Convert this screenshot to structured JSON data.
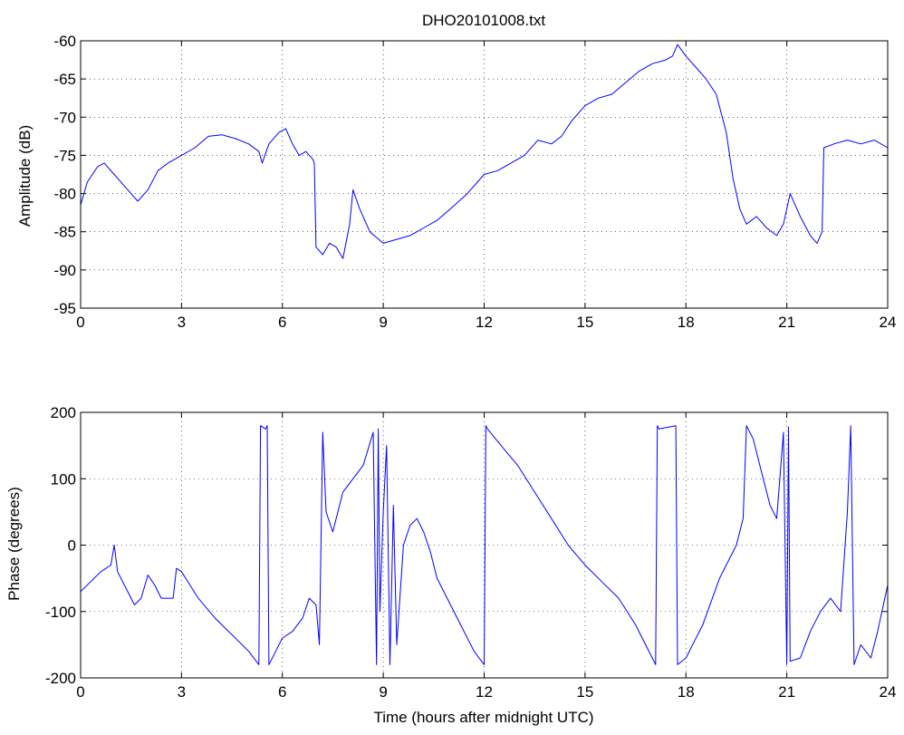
{
  "chart_data": [
    {
      "type": "line",
      "title": "DHO20101008.txt",
      "xlabel": "",
      "ylabel": "Amplitude (dB)",
      "xlim": [
        0,
        24
      ],
      "ylim": [
        -95,
        -60
      ],
      "xticks": [
        0,
        3,
        6,
        9,
        12,
        15,
        18,
        21,
        24
      ],
      "yticks": [
        -95,
        -90,
        -85,
        -80,
        -75,
        -70,
        -65,
        -60
      ],
      "xtick_labels": [
        "0",
        "3",
        "6",
        "9",
        "12",
        "15",
        "18",
        "21",
        "24"
      ],
      "ytick_labels": [
        "-95",
        "-90",
        "-85",
        "-80",
        "-75",
        "-70",
        "-65",
        "-60"
      ],
      "grid": "dotted",
      "line_color": "#0000ff",
      "series": [
        {
          "x": [
            0,
            0.2,
            0.5,
            0.7,
            1.0,
            1.4,
            1.7,
            2.0,
            2.3,
            2.6,
            3.0,
            3.4,
            3.8,
            4.2,
            4.6,
            5.0,
            5.3,
            5.4,
            5.6,
            5.9,
            6.1,
            6.3,
            6.5,
            6.7,
            6.9,
            6.95,
            7.0,
            7.2,
            7.4,
            7.6,
            7.8,
            8.0,
            8.1,
            8.3,
            8.6,
            9.0,
            9.4,
            9.8,
            10.2,
            10.6,
            11.0,
            11.5,
            12.0,
            12.4,
            12.8,
            13.2,
            13.6,
            14.0,
            14.3,
            14.6,
            15.0,
            15.4,
            15.8,
            16.2,
            16.6,
            17.0,
            17.4,
            17.6,
            17.75,
            18.0,
            18.3,
            18.6,
            18.9,
            19.2,
            19.4,
            19.6,
            19.8,
            20.1,
            20.4,
            20.7,
            20.9,
            21.1,
            21.4,
            21.7,
            21.9,
            22.05,
            22.1,
            22.4,
            22.8,
            23.2,
            23.6,
            24.0
          ],
          "y": [
            -81.5,
            -78.5,
            -76.5,
            -76.0,
            -77.5,
            -79.5,
            -81.0,
            -79.5,
            -77.0,
            -76.0,
            -75.0,
            -74.0,
            -72.5,
            -72.3,
            -72.8,
            -73.5,
            -74.5,
            -76.0,
            -73.5,
            -72.0,
            -71.5,
            -73.5,
            -75.0,
            -74.5,
            -75.5,
            -76.0,
            -87.0,
            -88.0,
            -86.5,
            -87.0,
            -88.5,
            -84.0,
            -79.5,
            -82.0,
            -85.0,
            -86.5,
            -86.0,
            -85.5,
            -84.5,
            -83.5,
            -82.0,
            -80.0,
            -77.5,
            -77.0,
            -76.0,
            -75.0,
            -73.0,
            -73.5,
            -72.5,
            -70.5,
            -68.5,
            -67.5,
            -67.0,
            -65.5,
            -64.0,
            -63.0,
            -62.5,
            -62.0,
            -60.5,
            -62.0,
            -63.5,
            -65.0,
            -67.0,
            -72.0,
            -78.0,
            -82.0,
            -84.0,
            -83.0,
            -84.5,
            -85.5,
            -84.0,
            -80.0,
            -83.0,
            -85.5,
            -86.5,
            -85.0,
            -74.0,
            -73.5,
            -73.0,
            -73.5,
            -73.0,
            -74.0
          ]
        }
      ]
    },
    {
      "type": "line",
      "title": "",
      "xlabel": "Time (hours after midnight UTC)",
      "ylabel": "Phase (degrees)",
      "xlim": [
        0,
        24
      ],
      "ylim": [
        -200,
        200
      ],
      "xticks": [
        0,
        3,
        6,
        9,
        12,
        15,
        18,
        21,
        24
      ],
      "yticks": [
        -200,
        -100,
        0,
        100,
        200
      ],
      "xtick_labels": [
        "0",
        "3",
        "6",
        "9",
        "12",
        "15",
        "18",
        "21",
        "24"
      ],
      "ytick_labels": [
        "-200",
        "-100",
        "0",
        "100",
        "200"
      ],
      "grid": "dotted",
      "line_color": "#0000ff",
      "series": [
        {
          "x": [
            0,
            0.3,
            0.6,
            0.9,
            1.0,
            1.1,
            1.3,
            1.6,
            1.8,
            2.0,
            2.2,
            2.4,
            2.6,
            2.75,
            2.85,
            3.0,
            3.5,
            4.0,
            4.5,
            5.0,
            5.3,
            5.35,
            5.5,
            5.55,
            5.6,
            5.65,
            5.8,
            6.0,
            6.3,
            6.6,
            6.8,
            7.0,
            7.1,
            7.2,
            7.3,
            7.5,
            7.8,
            8.1,
            8.4,
            8.7,
            8.8,
            8.85,
            8.9,
            9.0,
            9.1,
            9.2,
            9.3,
            9.4,
            9.6,
            9.8,
            10.0,
            10.2,
            10.4,
            10.6,
            10.9,
            11.3,
            11.7,
            12.0,
            12.05,
            12.1,
            12.5,
            13.0,
            13.5,
            14.0,
            14.5,
            15.0,
            15.5,
            16.0,
            16.5,
            17.0,
            17.1,
            17.15,
            17.2,
            17.5,
            17.7,
            17.75,
            18.0,
            18.5,
            19.0,
            19.5,
            19.7,
            19.8,
            20.0,
            20.3,
            20.5,
            20.7,
            20.9,
            21.0,
            21.05,
            21.1,
            21.4,
            21.7,
            22.0,
            22.3,
            22.6,
            22.8,
            22.9,
            23.0,
            23.2,
            23.5,
            23.7,
            24.0
          ],
          "y": [
            -70,
            -55,
            -40,
            -30,
            0,
            -40,
            -60,
            -90,
            -80,
            -45,
            -60,
            -80,
            -80,
            -80,
            -35,
            -40,
            -80,
            -110,
            -135,
            -160,
            -180,
            180,
            175,
            180,
            -180,
            -175,
            -160,
            -140,
            -130,
            -110,
            -80,
            -90,
            -150,
            170,
            50,
            20,
            80,
            100,
            120,
            170,
            -180,
            175,
            -100,
            50,
            150,
            -180,
            60,
            -150,
            0,
            30,
            40,
            20,
            -10,
            -50,
            -80,
            -120,
            -160,
            -180,
            180,
            175,
            150,
            120,
            80,
            40,
            0,
            -30,
            -55,
            -80,
            -120,
            -170,
            -180,
            180,
            175,
            178,
            180,
            -180,
            -170,
            -120,
            -50,
            0,
            40,
            180,
            160,
            100,
            60,
            40,
            170,
            -180,
            178,
            -175,
            -170,
            -130,
            -100,
            -80,
            -100,
            50,
            180,
            -180,
            -150,
            -170,
            -130,
            -60
          ]
        }
      ]
    }
  ]
}
